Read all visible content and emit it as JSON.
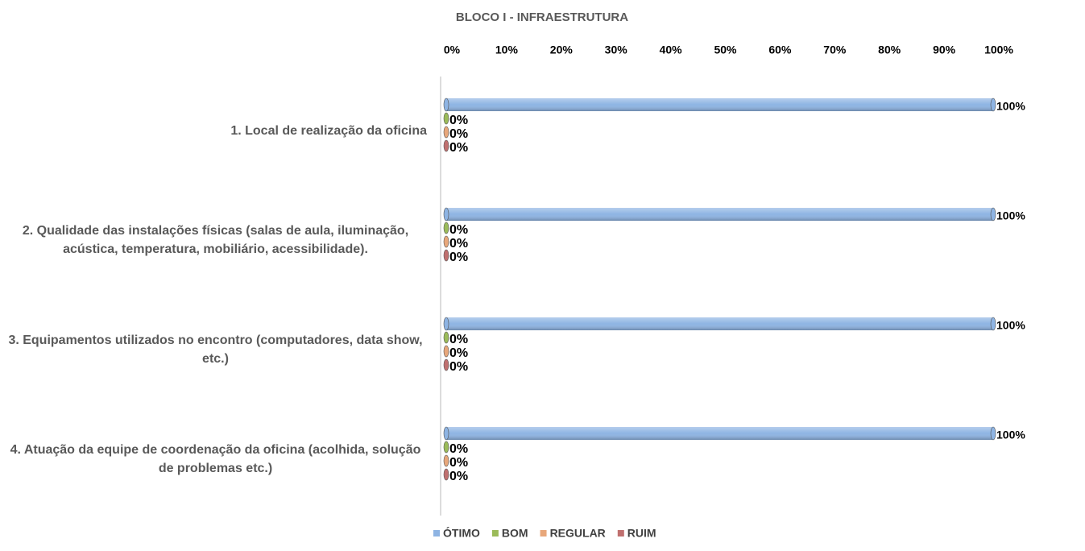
{
  "chart_data": {
    "type": "bar",
    "orientation": "horizontal",
    "title": "BLOCO I - INFRAESTRUTURA",
    "categories": [
      "1. Local de realização da oficina",
      "2. Qualidade das instalações físicas (salas de aula, iluminação, acústica, temperatura, mobiliário, acessibilidade).",
      "3. Equipamentos utilizados no encontro (computadores, data show, etc.)",
      "4. Atuação da equipe de coordenação da oficina (acolhida, solução de problemas etc.)"
    ],
    "series": [
      {
        "name": "ÓTIMO",
        "color": "#8eb4e3",
        "values": [
          100,
          100,
          100,
          100
        ],
        "value_labels": [
          "100%",
          "100%",
          "100%",
          "100%"
        ]
      },
      {
        "name": "BOM",
        "color": "#9bbb59",
        "values": [
          0,
          0,
          0,
          0
        ],
        "value_labels": [
          "0%",
          "0%",
          "0%",
          "0%"
        ]
      },
      {
        "name": "REGULAR",
        "color": "#e8a77a",
        "values": [
          0,
          0,
          0,
          0
        ],
        "value_labels": [
          "0%",
          "0%",
          "0%",
          "0%"
        ]
      },
      {
        "name": "RUIM",
        "color": "#c0706f",
        "values": [
          0,
          0,
          0,
          0
        ],
        "value_labels": [
          "0%",
          "0%",
          "0%",
          "0%"
        ]
      }
    ],
    "xlim": [
      0,
      100
    ],
    "xticks": [
      {
        "value": 0,
        "label": "0%"
      },
      {
        "value": 10,
        "label": "10%"
      },
      {
        "value": 20,
        "label": "20%"
      },
      {
        "value": 30,
        "label": "30%"
      },
      {
        "value": 40,
        "label": "40%"
      },
      {
        "value": 50,
        "label": "50%"
      },
      {
        "value": 60,
        "label": "60%"
      },
      {
        "value": 70,
        "label": "70%"
      },
      {
        "value": 80,
        "label": "80%"
      },
      {
        "value": 90,
        "label": "90%"
      },
      {
        "value": 100,
        "label": "100%"
      }
    ],
    "legend": "bottom"
  }
}
